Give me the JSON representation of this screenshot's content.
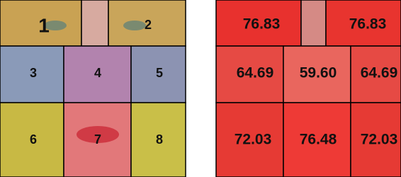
{
  "left_panel": {
    "regions": [
      {
        "label": "1"
      },
      {
        "label": "2"
      },
      {
        "label": "3"
      },
      {
        "label": "4"
      },
      {
        "label": "5"
      },
      {
        "label": "6"
      },
      {
        "label": "7"
      },
      {
        "label": "8"
      }
    ]
  },
  "right_panel": {
    "regions": [
      {
        "label": "76.83"
      },
      {
        "label": "76.83"
      },
      {
        "label": "64.69"
      },
      {
        "label": "59.60"
      },
      {
        "label": "64.69"
      },
      {
        "label": "72.03"
      },
      {
        "label": "76.48"
      },
      {
        "label": "72.03"
      }
    ]
  }
}
